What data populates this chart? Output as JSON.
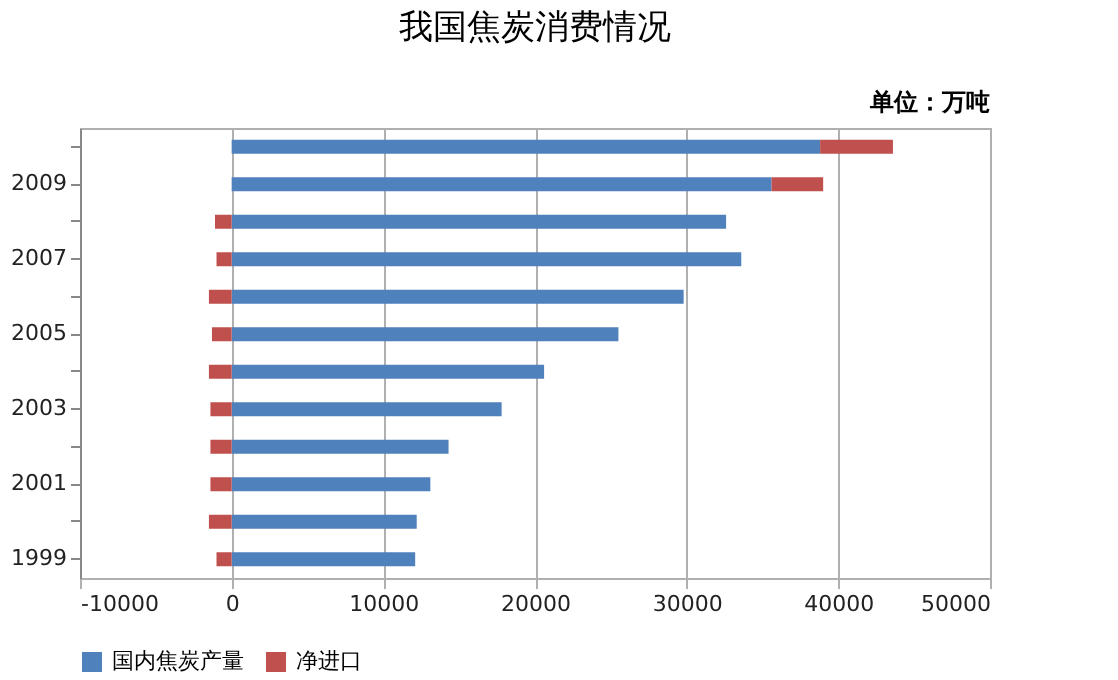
{
  "chart_data": {
    "type": "bar",
    "orientation": "horizontal",
    "stacked": true,
    "title": "我国焦炭消费情况",
    "annotations": [
      "单位：万吨"
    ],
    "categories": [
      null,
      "2009",
      null,
      "2007",
      null,
      "2005",
      null,
      "2003",
      null,
      "2001",
      null,
      "1999"
    ],
    "series": [
      {
        "name": "国内焦炭产量",
        "color": "#4f81bd",
        "values": [
          38800,
          35600,
          32600,
          33600,
          29800,
          25500,
          20600,
          17800,
          14300,
          13100,
          12200,
          12100
        ]
      },
      {
        "name": "净进口",
        "color": "#c0504d",
        "values": [
          4800,
          3400,
          -1100,
          -1000,
          -1500,
          -1300,
          -1500,
          -1400,
          -1400,
          -1400,
          -1500,
          -1000
        ]
      }
    ],
    "xlim": [
      -10000,
      50000
    ],
    "xticks": [
      -10000,
      0,
      10000,
      20000,
      30000,
      40000,
      50000
    ],
    "grid": "x",
    "legend": "bottom"
  }
}
